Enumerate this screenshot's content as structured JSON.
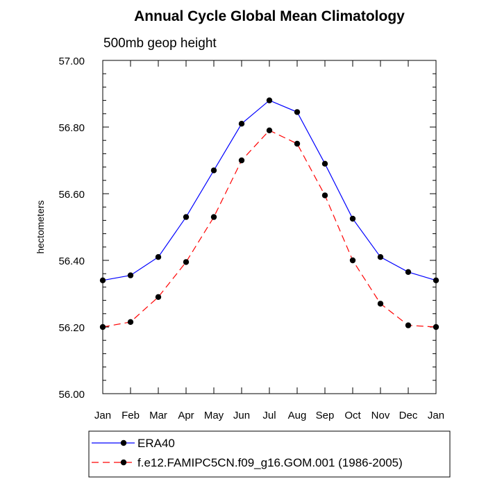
{
  "chart_data": {
    "type": "line",
    "title": "Annual Cycle Global Mean Climatology",
    "subtitle": "500mb geop height",
    "xlabel": "",
    "ylabel": "hectometers",
    "categories": [
      "Jan",
      "Feb",
      "Mar",
      "Apr",
      "May",
      "Jun",
      "Jul",
      "Aug",
      "Sep",
      "Oct",
      "Nov",
      "Dec",
      "Jan"
    ],
    "ylim": [
      56.0,
      57.0
    ],
    "yticks": [
      56.0,
      56.2,
      56.4,
      56.6,
      56.8,
      57.0
    ],
    "ytick_labels": [
      "56.00",
      "56.20",
      "56.40",
      "56.60",
      "56.80",
      "57.00"
    ],
    "grid": false,
    "legend_position": "bottom",
    "series": [
      {
        "name": "ERA40",
        "color": "#0000ff",
        "dash": "solid",
        "marker": "circle",
        "values": [
          56.34,
          56.355,
          56.41,
          56.53,
          56.67,
          56.81,
          56.88,
          56.845,
          56.69,
          56.525,
          56.41,
          56.365,
          56.34
        ]
      },
      {
        "name": "f.e12.FAMIPC5CN.f09_g16.GOM.001 (1986-2005)",
        "color": "#ff0000",
        "dash": "dashed",
        "marker": "circle",
        "values": [
          56.2,
          56.215,
          56.29,
          56.395,
          56.53,
          56.7,
          56.79,
          56.75,
          56.595,
          56.4,
          56.27,
          56.205,
          56.2
        ]
      }
    ]
  }
}
